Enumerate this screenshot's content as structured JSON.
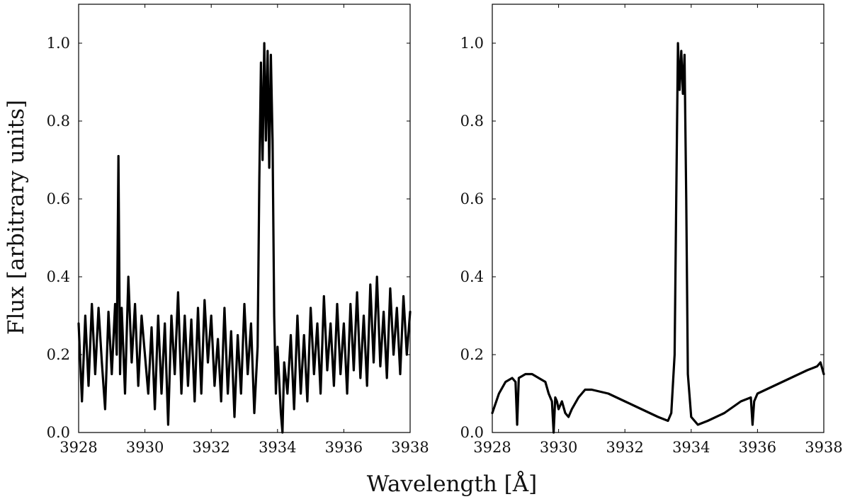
{
  "figure": {
    "ylabel": "Flux [arbitrary units]",
    "xlabel": "Wavelength [Å]"
  },
  "chart_data": [
    {
      "type": "line",
      "title": "",
      "xlabel": "Wavelength [Å]",
      "ylabel": "Flux [arbitrary units]",
      "xlim": [
        3928,
        3938
      ],
      "ylim": [
        0.0,
        1.1
      ],
      "x_ticks": [
        "3928",
        "3930",
        "3932",
        "3934",
        "3936",
        "3938"
      ],
      "y_ticks": [
        "0.0",
        "0.2",
        "0.4",
        "0.6",
        "0.8",
        "1.0"
      ],
      "grid": false,
      "line_color": "#000000",
      "series": [
        {
          "x": [
            3928.0,
            3928.1,
            3928.2,
            3928.3,
            3928.4,
            3928.5,
            3928.6,
            3928.7,
            3928.8,
            3928.9,
            3929.0,
            3929.1,
            3929.15,
            3929.2,
            3929.25,
            3929.3,
            3929.4,
            3929.5,
            3929.6,
            3929.7,
            3929.8,
            3929.9,
            3930.0,
            3930.1,
            3930.2,
            3930.3,
            3930.4,
            3930.5,
            3930.6,
            3930.7,
            3930.8,
            3930.9,
            3931.0,
            3931.1,
            3931.2,
            3931.3,
            3931.4,
            3931.5,
            3931.6,
            3931.7,
            3931.8,
            3931.9,
            3932.0,
            3932.1,
            3932.2,
            3932.3,
            3932.4,
            3932.5,
            3932.6,
            3932.7,
            3932.8,
            3932.9,
            3933.0,
            3933.1,
            3933.2,
            3933.3,
            3933.4,
            3933.45,
            3933.5,
            3933.55,
            3933.6,
            3933.65,
            3933.7,
            3933.75,
            3933.8,
            3933.85,
            3933.9,
            3933.95,
            3934.0,
            3934.1,
            3934.15,
            3934.2,
            3934.3,
            3934.4,
            3934.5,
            3934.6,
            3934.7,
            3934.8,
            3934.9,
            3935.0,
            3935.1,
            3935.2,
            3935.3,
            3935.4,
            3935.5,
            3935.6,
            3935.7,
            3935.8,
            3935.9,
            3936.0,
            3936.1,
            3936.2,
            3936.3,
            3936.4,
            3936.5,
            3936.6,
            3936.7,
            3936.8,
            3936.9,
            3937.0,
            3937.1,
            3937.2,
            3937.3,
            3937.4,
            3937.5,
            3937.6,
            3937.7,
            3937.8,
            3937.9,
            3938.0
          ],
          "y": [
            0.28,
            0.08,
            0.3,
            0.12,
            0.33,
            0.15,
            0.32,
            0.18,
            0.06,
            0.31,
            0.15,
            0.33,
            0.2,
            0.71,
            0.15,
            0.32,
            0.1,
            0.4,
            0.18,
            0.33,
            0.12,
            0.3,
            0.2,
            0.1,
            0.27,
            0.06,
            0.3,
            0.1,
            0.28,
            0.02,
            0.3,
            0.15,
            0.36,
            0.1,
            0.3,
            0.12,
            0.29,
            0.08,
            0.32,
            0.1,
            0.34,
            0.18,
            0.3,
            0.12,
            0.24,
            0.08,
            0.32,
            0.1,
            0.26,
            0.04,
            0.25,
            0.1,
            0.33,
            0.15,
            0.28,
            0.05,
            0.22,
            0.65,
            0.95,
            0.7,
            1.0,
            0.75,
            0.98,
            0.68,
            0.97,
            0.75,
            0.3,
            0.1,
            0.22,
            0.05,
            0.0,
            0.18,
            0.1,
            0.25,
            0.06,
            0.3,
            0.1,
            0.25,
            0.08,
            0.32,
            0.15,
            0.28,
            0.1,
            0.35,
            0.16,
            0.28,
            0.12,
            0.33,
            0.15,
            0.28,
            0.1,
            0.33,
            0.16,
            0.36,
            0.14,
            0.3,
            0.12,
            0.38,
            0.18,
            0.4,
            0.17,
            0.31,
            0.14,
            0.37,
            0.2,
            0.32,
            0.15,
            0.35,
            0.2,
            0.31
          ]
        }
      ]
    },
    {
      "type": "line",
      "title": "",
      "xlabel": "Wavelength [Å]",
      "ylabel": "",
      "xlim": [
        3928,
        3938
      ],
      "ylim": [
        0.0,
        1.1
      ],
      "x_ticks": [
        "3928",
        "3930",
        "3932",
        "3934",
        "3936",
        "3938"
      ],
      "y_ticks": [
        "0.0",
        "0.2",
        "0.4",
        "0.6",
        "0.8",
        "1.0"
      ],
      "grid": false,
      "line_color": "#000000",
      "series": [
        {
          "x": [
            3928.0,
            3928.2,
            3928.4,
            3928.6,
            3928.7,
            3928.75,
            3928.8,
            3929.0,
            3929.2,
            3929.4,
            3929.6,
            3929.7,
            3929.8,
            3929.85,
            3929.9,
            3929.95,
            3930.0,
            3930.1,
            3930.2,
            3930.3,
            3930.4,
            3930.6,
            3930.8,
            3931.0,
            3931.5,
            3932.0,
            3932.5,
            3933.0,
            3933.3,
            3933.4,
            3933.5,
            3933.55,
            3933.6,
            3933.65,
            3933.7,
            3933.75,
            3933.8,
            3933.85,
            3933.9,
            3934.0,
            3934.2,
            3934.5,
            3935.0,
            3935.5,
            3935.8,
            3935.85,
            3935.9,
            3936.0,
            3936.5,
            3937.0,
            3937.5,
            3937.8,
            3937.9,
            3938.0
          ],
          "y": [
            0.05,
            0.1,
            0.13,
            0.14,
            0.13,
            0.02,
            0.14,
            0.15,
            0.15,
            0.14,
            0.13,
            0.1,
            0.08,
            0.0,
            0.09,
            0.08,
            0.06,
            0.08,
            0.05,
            0.04,
            0.06,
            0.09,
            0.11,
            0.11,
            0.1,
            0.08,
            0.06,
            0.04,
            0.03,
            0.05,
            0.2,
            0.6,
            1.0,
            0.88,
            0.98,
            0.87,
            0.97,
            0.6,
            0.15,
            0.04,
            0.02,
            0.03,
            0.05,
            0.08,
            0.09,
            0.02,
            0.08,
            0.1,
            0.12,
            0.14,
            0.16,
            0.17,
            0.18,
            0.15
          ]
        }
      ]
    }
  ]
}
